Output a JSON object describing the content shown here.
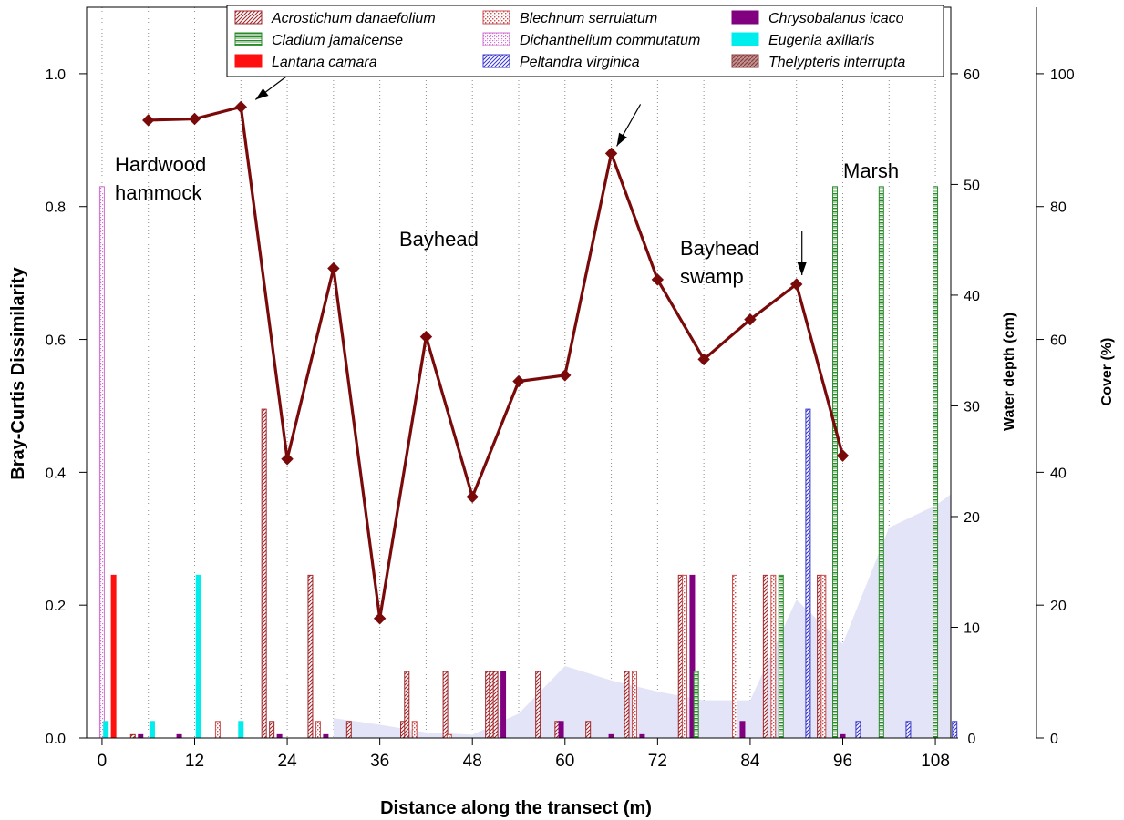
{
  "chart_data": {
    "type": "bar",
    "xlabel": "Distance along the transect (m)",
    "ylabel": "Bray-Curtis Dissimilarity",
    "y2label": "Water depth (cm)",
    "y3label": "Cover (%)",
    "xlim": [
      -2,
      110
    ],
    "ylim": [
      0,
      1.1
    ],
    "y2lim": [
      0,
      66
    ],
    "y3lim": [
      0,
      110
    ],
    "xticks": [
      "0",
      "12",
      "24",
      "36",
      "48",
      "60",
      "72",
      "84",
      "96",
      "108"
    ],
    "xtick_values": [
      0,
      12,
      24,
      36,
      48,
      60,
      72,
      84,
      96,
      108
    ],
    "yticks": [
      "0.0",
      "0.2",
      "0.4",
      "0.6",
      "0.8",
      "1.0"
    ],
    "y2ticks": [
      "0",
      "10",
      "20",
      "30",
      "40",
      "50",
      "60"
    ],
    "y3ticks": [
      "0",
      "20",
      "40",
      "60",
      "80",
      "100"
    ],
    "grid": "vertical",
    "legend_position": "top",
    "species": [
      {
        "name": "Acrostichum danaefolium",
        "color": "#a0282d",
        "pattern": "diag",
        "bars": [
          [
            4,
            0.5
          ],
          [
            21,
            49.5
          ],
          [
            22,
            2.5
          ],
          [
            27,
            24.5
          ],
          [
            32,
            2.5
          ],
          [
            39,
            2.5
          ],
          [
            39.5,
            10
          ],
          [
            44.5,
            10
          ],
          [
            50,
            10
          ],
          [
            50.5,
            10
          ],
          [
            51,
            10
          ],
          [
            56.5,
            10
          ],
          [
            59,
            2.5
          ],
          [
            63,
            2.5
          ],
          [
            68,
            10
          ],
          [
            75,
            24.5
          ],
          [
            86,
            24.5
          ],
          [
            93,
            24.5
          ]
        ]
      },
      {
        "name": "Blechnum serrulatum",
        "color": "#c85050",
        "pattern": "dots",
        "bars": [
          [
            15,
            2.5
          ],
          [
            28,
            2.5
          ],
          [
            40.5,
            2.5
          ],
          [
            45,
            0.5
          ],
          [
            69,
            10
          ],
          [
            75.5,
            24.5
          ],
          [
            82,
            24.5
          ],
          [
            87,
            24.5
          ],
          [
            93.5,
            24.5
          ]
        ]
      },
      {
        "name": "Chrysobalanus icaco",
        "color": "#800080",
        "pattern": "solid",
        "bars": [
          [
            5,
            0.5
          ],
          [
            10,
            0.5
          ],
          [
            23,
            0.5
          ],
          [
            29,
            0.5
          ],
          [
            52,
            10
          ],
          [
            59.5,
            2.5
          ],
          [
            66,
            0.5
          ],
          [
            70,
            0.5
          ],
          [
            76.5,
            24.5
          ],
          [
            83,
            2.5
          ],
          [
            96,
            0.5
          ]
        ]
      },
      {
        "name": "Cladium jamaicense",
        "color": "#2a8a2a",
        "pattern": "hlines",
        "bars": [
          [
            77,
            10
          ],
          [
            88,
            24.5
          ],
          [
            95,
            83
          ],
          [
            101,
            83
          ],
          [
            108,
            83
          ]
        ]
      },
      {
        "name": "Dichanthelium commutatum",
        "color": "#d070d0",
        "pattern": "fine",
        "bars": [
          [
            0,
            83
          ]
        ]
      },
      {
        "name": "Eugenia axillaris",
        "color": "#00eded",
        "pattern": "solid",
        "bars": [
          [
            0.5,
            2.5
          ],
          [
            6.5,
            2.5
          ],
          [
            12.5,
            24.5
          ],
          [
            18,
            2.5
          ]
        ]
      },
      {
        "name": "Lantana camara",
        "color": "#ff1010",
        "pattern": "solid",
        "bars": [
          [
            1.5,
            24.5
          ]
        ]
      },
      {
        "name": "Peltandra virginica",
        "color": "#3a3acd",
        "pattern": "diag",
        "bars": [
          [
            91.5,
            49.5
          ],
          [
            98,
            2.5
          ],
          [
            104.5,
            2.5
          ],
          [
            110.5,
            2.5
          ]
        ]
      },
      {
        "name": "Thelypteris interrupta",
        "color": "#8c3c3c",
        "pattern": "dense",
        "bars": []
      }
    ],
    "dissimilarity_series": {
      "x": [
        6,
        12,
        18,
        24,
        30,
        36,
        42,
        48,
        54,
        60,
        66,
        72,
        78,
        84,
        90,
        96
      ],
      "y": [
        0.93,
        0.932,
        0.95,
        0.42,
        0.707,
        0.18,
        0.604,
        0.363,
        0.537,
        0.546,
        0.88,
        0.69,
        0.57,
        0.63,
        0.683,
        0.425
      ]
    },
    "water_depth_series": {
      "x": [
        30,
        36,
        42,
        48,
        54,
        60,
        66,
        72,
        78,
        84,
        90,
        96,
        102,
        108,
        110
      ],
      "y": [
        1.8,
        1.2,
        0.5,
        0.3,
        2.2,
        6.5,
        5.2,
        4.2,
        3.4,
        3.4,
        12.5,
        8.5,
        19,
        21,
        22
      ]
    },
    "arrows_at_x": [
      18,
      66,
      90
    ],
    "zone_labels": {
      "hardwood_1": "Hardwood",
      "hardwood_2": "hammock",
      "bayhead": "Bayhead",
      "bayhead_swamp_1": "Bayhead",
      "bayhead_swamp_2": "swamp",
      "marsh": "Marsh"
    },
    "colors": {
      "line": "#7a0a0a",
      "water": "#e4e4f8"
    }
  }
}
